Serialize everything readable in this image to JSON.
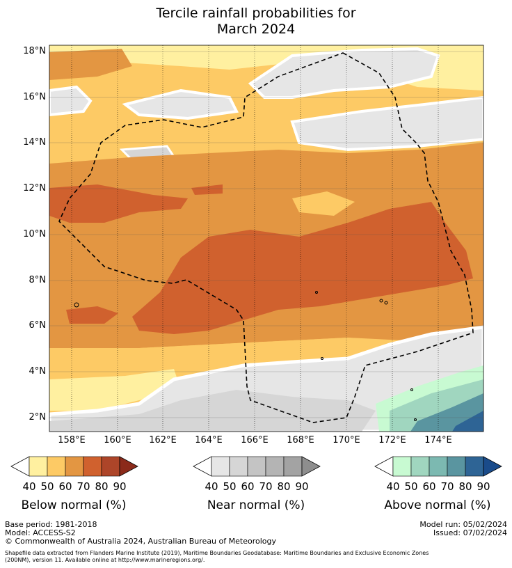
{
  "title_line1": "Tercile rainfall probabilities for",
  "title_line2": "March 2024",
  "map": {
    "lat_ticks": [
      "18°N",
      "16°N",
      "14°N",
      "12°N",
      "10°N",
      "8°N",
      "6°N",
      "4°N",
      "2°N"
    ],
    "lon_ticks": [
      "158°E",
      "160°E",
      "162°E",
      "164°E",
      "166°E",
      "168°E",
      "170°E",
      "172°E",
      "174°E"
    ]
  },
  "colorbars": [
    {
      "title": "Below normal (%)",
      "labels": [
        "40",
        "50",
        "60",
        "70",
        "80",
        "90"
      ],
      "colors": [
        "#fff0a0",
        "#fdca65",
        "#e39642",
        "#d0612e",
        "#ad4529",
        "#8b2a1a"
      ]
    },
    {
      "title": "Near normal (%)",
      "labels": [
        "40",
        "50",
        "60",
        "70",
        "80",
        "90"
      ],
      "colors": [
        "#e6e6e6",
        "#d6d6d6",
        "#c4c4c4",
        "#b4b4b4",
        "#a3a3a3",
        "#8e8e8e"
      ]
    },
    {
      "title": "Above normal (%)",
      "labels": [
        "40",
        "50",
        "60",
        "70",
        "80",
        "90"
      ],
      "colors": [
        "#c8fad2",
        "#a0d6bf",
        "#7cb9b1",
        "#5a95a0",
        "#2e6495",
        "#1a4b8a"
      ]
    }
  ],
  "footer": {
    "base_period": "Base period: 1981-2018",
    "model": "Model: ACCESS-S2",
    "model_run": "Model run: 05/02/2024",
    "issued": "Issued: 07/02/2024",
    "copyright": "© Commonwealth of Australia 2024, Australian Bureau of Meteorology",
    "shapefile_1": "Shapefile data extracted from Flanders Marine Institute (2019), Maritime Boundaries Geodatabase: Maritime Boundaries and Exclusive Economic Zones",
    "shapefile_2": "(200NM), version 11. Available online at http://www.marineregions.org/."
  }
}
